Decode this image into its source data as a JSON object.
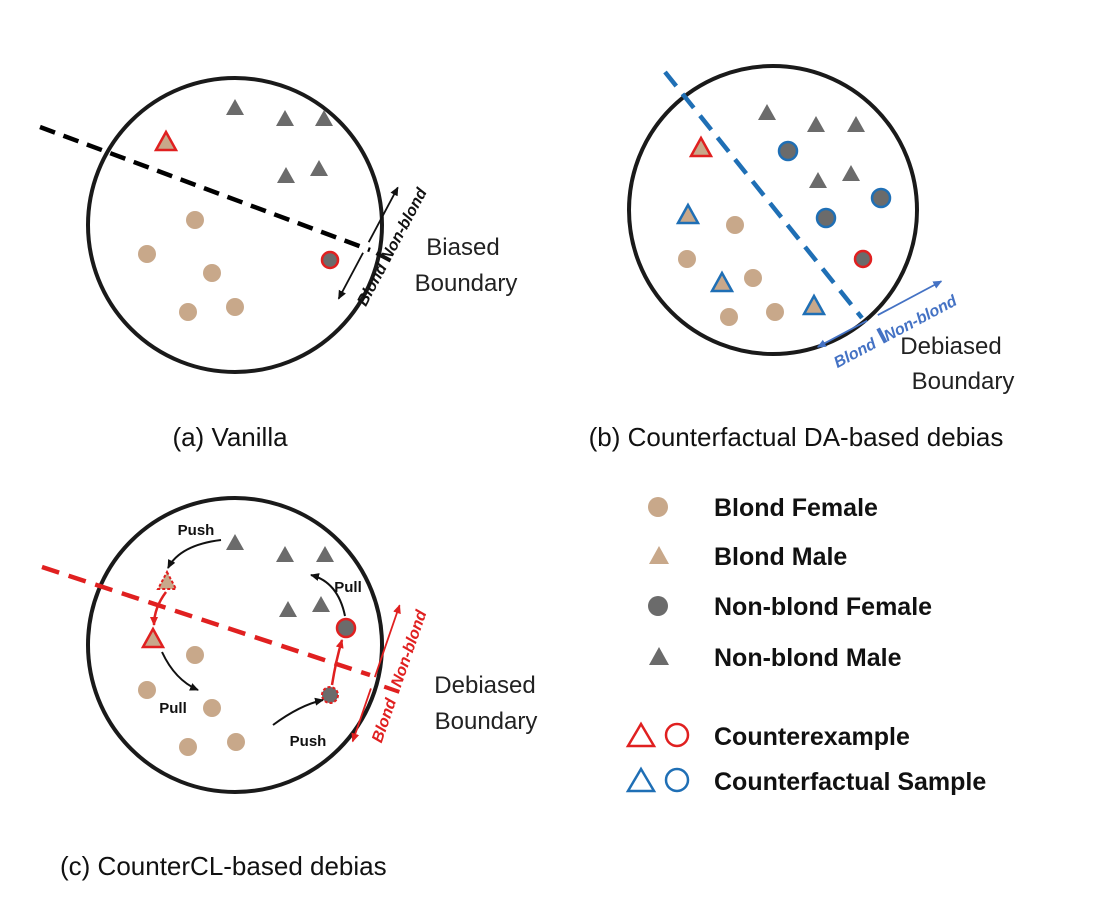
{
  "colors": {
    "blond": "#c8a88a",
    "nonblond": "#6b6b6b",
    "counterexample": "#e02020",
    "counterfactual": "#1f6fb5",
    "circle": "#1a1a1a"
  },
  "panels": {
    "a": {
      "caption": "(a) Vanilla",
      "boundary_label": [
        "Biased",
        "Boundary"
      ],
      "side_blond": "Blond",
      "side_nonblond": "Non-blond"
    },
    "b": {
      "caption": "(b) Counterfactual DA-based debias",
      "boundary_label": [
        "Debiased",
        "Boundary"
      ],
      "side_blond": "Blond",
      "side_nonblond": "Non-blond"
    },
    "c": {
      "caption": "(c) CounterCL-based debias",
      "boundary_label": [
        "Debiased",
        "Boundary"
      ],
      "side_blond": "Blond",
      "side_nonblond": "Non-blond",
      "push_label": "Push",
      "pull_label": "Pull"
    }
  },
  "legend": {
    "items": [
      {
        "shape": "circle-icon",
        "label": "Blond Female"
      },
      {
        "shape": "triangle-icon",
        "label": "Blond Male"
      },
      {
        "shape": "circle-icon",
        "label": "Non-blond Female"
      },
      {
        "shape": "triangle-icon",
        "label": "Non-blond Male"
      }
    ],
    "counterexample": "Counterexample",
    "counterfactual": "Counterfactual Sample"
  }
}
